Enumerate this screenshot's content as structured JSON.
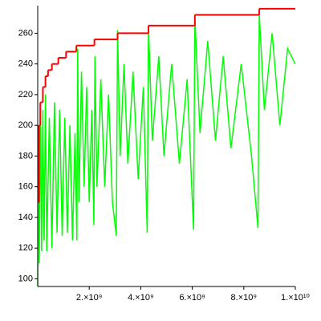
{
  "chart_data": {
    "type": "line",
    "xlim": [
      0,
      10000000000.0
    ],
    "ylim": [
      95,
      278
    ],
    "xticks": [
      {
        "value": 2000000000.0,
        "label": "2.×10⁹"
      },
      {
        "value": 4000000000.0,
        "label": "4.×10⁹"
      },
      {
        "value": 6000000000.0,
        "label": "6.×10⁹"
      },
      {
        "value": 8000000000.0,
        "label": "8.×10⁹"
      },
      {
        "value": 10000000000.0,
        "label": "1.×10¹⁰"
      }
    ],
    "yticks": [
      100,
      120,
      140,
      160,
      180,
      200,
      220,
      240,
      260
    ],
    "series": [
      {
        "color": "#00ff00",
        "step": false,
        "x": [
          0,
          30000000.0,
          60000000.0,
          100000000.0,
          150000000.0,
          200000000.0,
          250000000.0,
          300000000.0,
          350000000.0,
          450000000.0,
          550000000.0,
          650000000.0,
          750000000.0,
          850000000.0,
          950000000.0,
          1050000000.0,
          1150000000.0,
          1250000000.0,
          1350000000.0,
          1450000000.0,
          1520000000.0,
          1550000000.0,
          1600000000.0,
          1700000000.0,
          1800000000.0,
          1900000000.0,
          2000000000.0,
          2100000000.0,
          2180000000.0,
          2220000000.0,
          2300000000.0,
          2450000000.0,
          2600000000.0,
          2750000000.0,
          2900000000.0,
          3050000000.0,
          3100000000.0,
          3200000000.0,
          3350000000.0,
          3500000000.0,
          3700000000.0,
          3900000000.0,
          4100000000.0,
          4250000000.0,
          4300000000.0,
          4450000000.0,
          4700000000.0,
          4900000000.0,
          5200000000.0,
          5500000000.0,
          5800000000.0,
          6050000000.0,
          6100000000.0,
          6300000000.0,
          6600000000.0,
          6900000000.0,
          7200000000.0,
          7500000000.0,
          7900000000.0,
          8300000000.0,
          8550000000.0,
          8600000000.0,
          8800000000.0,
          9100000000.0,
          9400000000.0,
          9700000000.0,
          10000000000.0
        ],
        "values": [
          95,
          200,
          110,
          215,
          118,
          210,
          125,
          220,
          118,
          205,
          120,
          215,
          130,
          210,
          128,
          205,
          130,
          200,
          125,
          195,
          125,
          250,
          150,
          235,
          160,
          225,
          150,
          210,
          135,
          245,
          160,
          230,
          160,
          220,
          150,
          128,
          262,
          180,
          240,
          175,
          235,
          165,
          225,
          130,
          264,
          190,
          245,
          180,
          240,
          175,
          230,
          132,
          270,
          195,
          255,
          190,
          245,
          185,
          240,
          180,
          133,
          272,
          210,
          260,
          200,
          250,
          240
        ]
      },
      {
        "color": "#ff0000",
        "step": true,
        "x": [
          0,
          50000000.0,
          100000000.0,
          200000000.0,
          300000000.0,
          400000000.0,
          550000000.0,
          800000000.0,
          1100000000.0,
          1500000000.0,
          2200000000.0,
          3100000000.0,
          4300000000.0,
          6100000000.0,
          8600000000.0,
          10000000000.0
        ],
        "values": [
          150,
          200,
          215,
          225,
          232,
          236,
          240,
          244,
          248,
          252,
          256,
          260,
          265,
          272,
          276,
          276
        ]
      }
    ]
  }
}
